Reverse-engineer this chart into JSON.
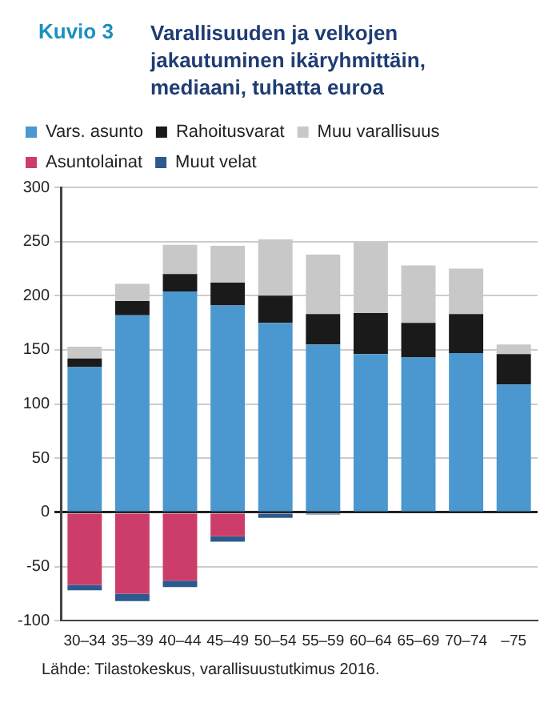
{
  "chart_data": {
    "type": "bar",
    "title": "Varallisuuden ja velkojen jakautuminen ikäryhmittäin, mediaani, tuhatta euroa",
    "annotations": [
      "Kuvio 3",
      "Lähde: Tilastokeskus, varallisuustutkimus 2016."
    ],
    "categories": [
      "30–34",
      "35–39",
      "40–44",
      "45–49",
      "50–54",
      "55–59",
      "60–64",
      "65–69",
      "70–74",
      "–75"
    ],
    "stacked": true,
    "series": [
      {
        "name": "Vars. asunto",
        "color": "#4a98cf",
        "values": [
          134,
          182,
          204,
          191,
          175,
          155,
          146,
          143,
          147,
          118
        ]
      },
      {
        "name": "Rahoitusvarat",
        "color": "#1a1a1a",
        "values": [
          8,
          13,
          16,
          21,
          25,
          28,
          38,
          32,
          36,
          28
        ]
      },
      {
        "name": "Muu varallisuus",
        "color": "#c8c8c8",
        "values": [
          11,
          16,
          27,
          34,
          52,
          55,
          65,
          53,
          42,
          9
        ]
      },
      {
        "name": "Asuntolainat",
        "color": "#cc3d6a",
        "values": [
          -67,
          -75,
          -63,
          -22,
          0,
          0,
          0,
          0,
          0,
          0
        ]
      },
      {
        "name": "Muut velat",
        "color": "#2c5a8e",
        "values": [
          -5,
          -7,
          -6,
          -5,
          -5,
          -2,
          0,
          0,
          0,
          0
        ]
      }
    ],
    "ylim": [
      -100,
      300
    ],
    "yticks": [
      -100,
      -50,
      0,
      50,
      100,
      150,
      200,
      250,
      300
    ],
    "grid": "y",
    "legend": "top"
  }
}
